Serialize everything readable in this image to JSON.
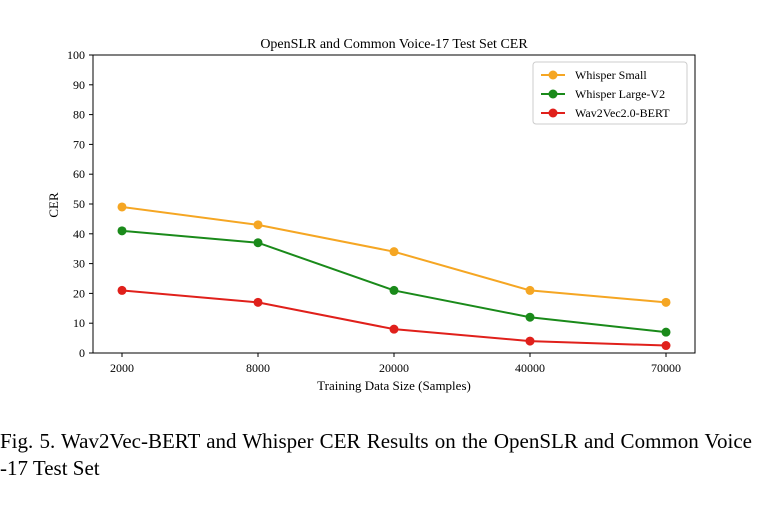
{
  "chart_data": {
    "type": "line",
    "title": "OpenSLR and Common Voice-17 Test Set CER",
    "xlabel": "Training Data Size (Samples)",
    "ylabel": "CER",
    "categories": [
      "2000",
      "8000",
      "20000",
      "40000",
      "70000"
    ],
    "ylim": [
      0,
      100
    ],
    "yticks": [
      "0",
      "10",
      "20",
      "30",
      "40",
      "50",
      "60",
      "70",
      "80",
      "90",
      "100"
    ],
    "grid": false,
    "legend_position": "top-right",
    "series": [
      {
        "name": "Whisper Small",
        "color": "#f5a623",
        "values": [
          49,
          43,
          34,
          21,
          17
        ]
      },
      {
        "name": "Whisper Large-V2",
        "color": "#1a8a1a",
        "values": [
          41,
          37,
          21,
          12,
          7
        ]
      },
      {
        "name": "Wav2Vec2.0-BERT",
        "color": "#e0201b",
        "values": [
          21,
          17,
          8,
          4,
          2.5
        ]
      }
    ]
  },
  "caption": "Fig. 5.  Wav2Vec-BERT and Whisper CER Results on the OpenSLR and Common Voice -17 Test Set"
}
